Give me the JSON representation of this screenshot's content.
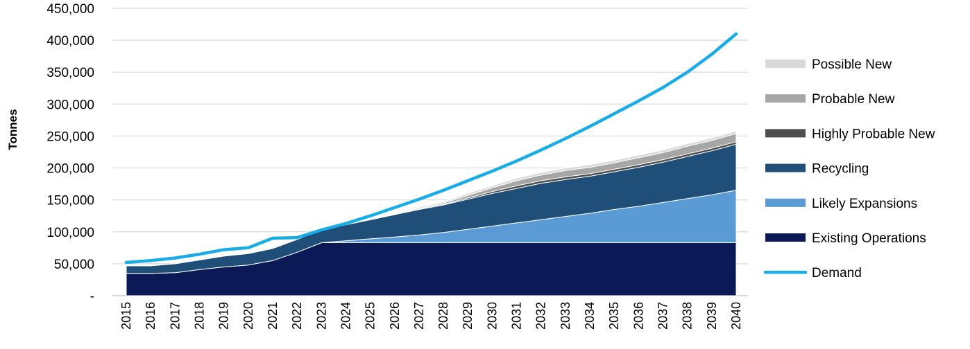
{
  "chart_data": {
    "type": "area",
    "ylabel": "Tonnes",
    "xlabel": "",
    "title": "",
    "ylim": [
      0,
      450000
    ],
    "y_ticks": [
      0,
      50000,
      100000,
      150000,
      200000,
      250000,
      300000,
      350000,
      400000,
      450000
    ],
    "y_tick_labels": [
      "-",
      "50,000",
      "100,000",
      "150,000",
      "200,000",
      "250,000",
      "300,000",
      "350,000",
      "400,000",
      "450,000"
    ],
    "grid": true,
    "legend_position": "right",
    "x": [
      "2015",
      "2016",
      "2017",
      "2018",
      "2019",
      "2020",
      "2021",
      "2022",
      "2023",
      "2024",
      "2025",
      "2026",
      "2027",
      "2028",
      "2029",
      "2030",
      "2031",
      "2032",
      "2033",
      "2034",
      "2035",
      "2036",
      "2037",
      "2038",
      "2039",
      "2040"
    ],
    "stacked_series": [
      {
        "name": "Existing Operations",
        "color": "#0b1a56",
        "values": [
          35000,
          35000,
          36000,
          41000,
          45000,
          48000,
          55000,
          68000,
          83000,
          83000,
          83000,
          83000,
          83000,
          83000,
          83000,
          83000,
          83000,
          83000,
          83000,
          83000,
          83000,
          83000,
          83000,
          83000,
          83000,
          83000
        ]
      },
      {
        "name": "Likely Expansions",
        "color": "#5b9bd5",
        "values": [
          0,
          0,
          0,
          0,
          0,
          0,
          0,
          0,
          0,
          3000,
          6000,
          9000,
          12000,
          16000,
          21000,
          26000,
          31000,
          36000,
          41000,
          46000,
          52000,
          57000,
          63000,
          69000,
          75000,
          82000
        ]
      },
      {
        "name": "Recycling",
        "color": "#1f4e79",
        "values": [
          12000,
          12000,
          14000,
          15000,
          17000,
          18000,
          19000,
          20000,
          21000,
          25000,
          30000,
          35000,
          40000,
          43000,
          47000,
          51000,
          54000,
          57000,
          58000,
          58000,
          59000,
          61000,
          63000,
          66000,
          69000,
          72000
        ]
      },
      {
        "name": "Highly Probable New",
        "color": "#4d4d4d",
        "values": [
          0,
          0,
          0,
          0,
          0,
          0,
          0,
          0,
          0,
          0,
          0,
          0,
          0,
          1000,
          2000,
          3000,
          4000,
          4000,
          4000,
          4000,
          4000,
          4000,
          4000,
          4000,
          4000,
          4000
        ]
      },
      {
        "name": "Probable New",
        "color": "#a6a6a6",
        "values": [
          0,
          0,
          0,
          0,
          0,
          0,
          0,
          0,
          0,
          0,
          0,
          0,
          1000,
          2000,
          4000,
          6000,
          8000,
          9000,
          10000,
          10000,
          10000,
          11000,
          11000,
          12000,
          12000,
          13000
        ]
      },
      {
        "name": "Possible New",
        "color": "#d9d9d9",
        "values": [
          0,
          0,
          0,
          0,
          0,
          0,
          0,
          0,
          0,
          0,
          0,
          1000,
          2000,
          2000,
          3000,
          3000,
          4000,
          4000,
          4000,
          4000,
          4000,
          4000,
          4000,
          4000,
          4000,
          4000
        ]
      }
    ],
    "line_series": [
      {
        "name": "Demand",
        "color": "#1aace4",
        "values": [
          52000,
          55000,
          59000,
          65000,
          72000,
          75000,
          90000,
          91000,
          103000,
          113000,
          125000,
          138000,
          151000,
          165000,
          180000,
          195000,
          211000,
          228000,
          246000,
          265000,
          285000,
          305000,
          326000,
          350000,
          378000,
          410000
        ]
      }
    ],
    "legend_order": [
      "Possible New",
      "Probable New",
      "Highly Probable New",
      "Recycling",
      "Likely Expansions",
      "Existing Operations",
      "Demand"
    ]
  }
}
